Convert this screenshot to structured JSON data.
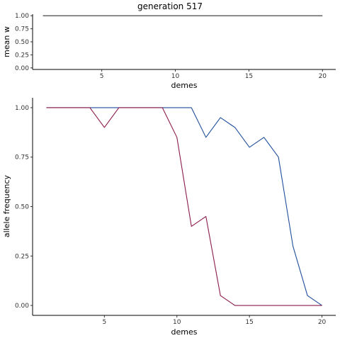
{
  "title": "generation 517",
  "chart_data": [
    {
      "type": "line",
      "xlabel": "demes",
      "ylabel": "mean w",
      "xlim": [
        0.3,
        20.9
      ],
      "ylim": [
        -0.03,
        1.03
      ],
      "x_ticks": [
        5,
        10,
        15,
        20
      ],
      "x_tick_labels": [
        "5",
        "10",
        "15",
        "20"
      ],
      "y_ticks": [
        0,
        0.25,
        0.5,
        0.75,
        1
      ],
      "y_tick_labels": [
        "0.00",
        "0.25",
        "0.50",
        "0.75",
        "1.00"
      ],
      "grid": false,
      "x": [
        1,
        2,
        3,
        4,
        5,
        6,
        7,
        8,
        9,
        10,
        11,
        12,
        13,
        14,
        15,
        16,
        17,
        18,
        19,
        20
      ],
      "series": [
        {
          "color": "#333333",
          "values": [
            1,
            1,
            1,
            1,
            1,
            1,
            1,
            1,
            1,
            1,
            1,
            1,
            1,
            1,
            1,
            1,
            1,
            1,
            1,
            1
          ]
        }
      ]
    },
    {
      "type": "line",
      "xlabel": "demes",
      "ylabel": "allele frequency",
      "xlim": [
        0.05,
        20.95
      ],
      "ylim": [
        -0.05,
        1.05
      ],
      "x_ticks": [
        5,
        10,
        15,
        20
      ],
      "x_tick_labels": [
        "5",
        "10",
        "15",
        "20"
      ],
      "y_ticks": [
        0,
        0.25,
        0.5,
        0.75,
        1
      ],
      "y_tick_labels": [
        "0.00",
        "0.25",
        "0.50",
        "0.75",
        "1.00"
      ],
      "grid": false,
      "x": [
        1,
        2,
        3,
        4,
        5,
        6,
        7,
        8,
        9,
        10,
        11,
        12,
        13,
        14,
        15,
        16,
        17,
        18,
        19,
        20
      ],
      "series": [
        {
          "color": "#1f4e9c",
          "values": [
            1,
            1,
            1,
            1,
            1,
            1,
            1,
            1,
            1,
            1,
            1,
            0.85,
            0.95,
            0.9,
            0.8,
            0.85,
            0.75,
            0.3,
            0.05,
            0
          ]
        },
        {
          "color": "#8b1a4a",
          "values": [
            1,
            1,
            1,
            1,
            0.9,
            1,
            1,
            1,
            1,
            0.85,
            0.4,
            0.45,
            0.05,
            0,
            0,
            0,
            0,
            0,
            0,
            0
          ]
        }
      ]
    }
  ]
}
